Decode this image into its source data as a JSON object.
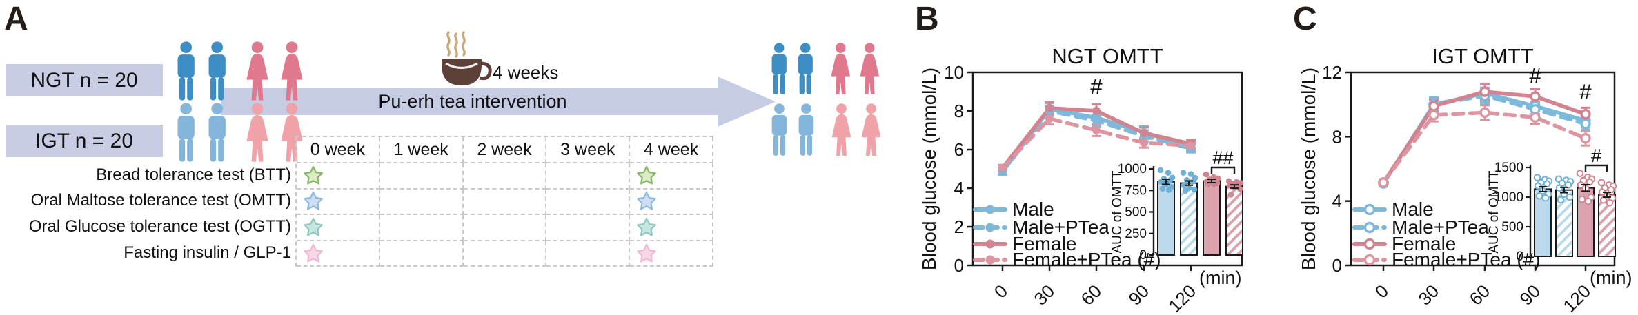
{
  "panels": {
    "a": {
      "label": "A",
      "groups": [
        {
          "label": "NGT n = 20",
          "male_color": "#3c8ec5",
          "female_color": "#e0798e"
        },
        {
          "label": "IGT n = 20",
          "male_color": "#84b6dc",
          "female_color": "#f0a2a9"
        }
      ],
      "group_box_color": "#c8cde4",
      "intervention": {
        "duration_label": "4 weeks",
        "arrow_label": "Pu-erh tea intervention",
        "arrow_color": "#c6cce4",
        "cup_color": "#5d4037",
        "steam_color": "#c9a87c"
      },
      "timeline": {
        "columns": [
          "0 week",
          "1 week",
          "2 week",
          "3 week",
          "4 week"
        ],
        "rows": [
          {
            "label": "Bread tolerance test (BTT)",
            "star_fill": "#dcebc6",
            "star_stroke": "#85b868",
            "marks": [
              0,
              4
            ]
          },
          {
            "label": "Oral Maltose tolerance test (OMTT)",
            "star_fill": "#ccdef2",
            "star_stroke": "#8fb8e0",
            "marks": [
              0,
              4
            ]
          },
          {
            "label": "Oral Glucose tolerance test (OGTT)",
            "star_fill": "#c8e6e0",
            "star_stroke": "#8cc8c0",
            "marks": [
              0,
              4
            ]
          },
          {
            "label": "Fasting insulin / GLP-1",
            "star_fill": "#f8d8e8",
            "star_stroke": "#f2b8d2",
            "marks": [
              0,
              4
            ]
          }
        ]
      }
    },
    "b": {
      "label": "B"
    },
    "c": {
      "label": "C"
    }
  },
  "chart_data": [
    {
      "id": "b-line",
      "type": "line",
      "title": "NGT  OMTT",
      "xlabel": "(min)",
      "ylabel": "Blood glucose (mmol/L)",
      "x": [
        0,
        30,
        60,
        90,
        120
      ],
      "ylim": [
        0,
        10
      ],
      "yticks": [
        0,
        2,
        4,
        6,
        8,
        10
      ],
      "legend_position": "bottom-left inside",
      "series": [
        {
          "name": "Male",
          "color": "#7db9da",
          "dash": false,
          "marker": "filled",
          "values": [
            4.85,
            8.1,
            7.65,
            6.9,
            6.1
          ],
          "errors": [
            0.15,
            0.3,
            0.35,
            0.3,
            0.2
          ]
        },
        {
          "name": "Male+PTea",
          "color": "#7db9da",
          "dash": true,
          "marker": "filled",
          "values": [
            4.85,
            8.0,
            7.5,
            6.7,
            6.05
          ],
          "errors": [
            0.15,
            0.25,
            0.3,
            0.3,
            0.2
          ]
        },
        {
          "name": "Female",
          "color": "#d2838f",
          "dash": false,
          "marker": "filled",
          "values": [
            5.05,
            8.15,
            8.0,
            6.85,
            6.3
          ],
          "errors": [
            0.15,
            0.3,
            0.35,
            0.3,
            0.2
          ]
        },
        {
          "name": "Female+PTea (#)",
          "color": "#dc95a1",
          "dash": true,
          "marker": "filled",
          "values": [
            5.05,
            7.6,
            7.0,
            6.35,
            6.2
          ],
          "errors": [
            0.15,
            0.3,
            0.3,
            0.25,
            0.2
          ]
        }
      ],
      "annotations": [
        {
          "text": "#",
          "x": 60,
          "value": 8.9
        }
      ]
    },
    {
      "id": "b-auc",
      "type": "bar",
      "ylabel": "AUC of OMTT",
      "ylim": [
        0,
        1000
      ],
      "yticks": [
        0,
        250,
        500,
        750,
        1000
      ],
      "dot_style": "filled",
      "bars": [
        {
          "group": "Male",
          "value": 850,
          "error": 30,
          "fill": "#badaec",
          "hatch": false,
          "dot_color": "#6fb0d6",
          "dots": [
            985,
            955,
            900,
            885,
            870,
            850,
            820,
            790,
            770,
            755
          ]
        },
        {
          "group": "Male+PTea",
          "value": 835,
          "error": 25,
          "fill": "#badaec",
          "hatch": true,
          "dot_color": "#6fb0d6",
          "dots": [
            955,
            940,
            895,
            870,
            855,
            805,
            775,
            760,
            745
          ]
        },
        {
          "group": "Female",
          "value": 860,
          "error": 20,
          "fill": "#dba2ad",
          "hatch": false,
          "dot_color": "#cf8490",
          "dots": [
            935,
            905,
            890,
            878,
            866,
            855,
            845,
            835,
            825,
            815
          ]
        },
        {
          "group": "Female+PTea",
          "value": 795,
          "error": 20,
          "fill": "#dba2ad",
          "hatch": true,
          "dot_color": "#cf8490",
          "dots": [
            858,
            848,
            838,
            828,
            818,
            805,
            788,
            768,
            700
          ]
        }
      ],
      "sig": {
        "text": "##",
        "from": 2,
        "to": 3
      }
    },
    {
      "id": "c-line",
      "type": "line",
      "title": "IGT  OMTT",
      "xlabel": "(min)",
      "ylabel": "Blood glucose (mmol/L)",
      "x": [
        0,
        30,
        60,
        90,
        120
      ],
      "ylim": [
        0,
        12
      ],
      "yticks": [
        0,
        4,
        8,
        12
      ],
      "legend_position": "bottom-left inside",
      "series": [
        {
          "name": "Male",
          "color": "#7db9da",
          "dash": false,
          "marker": "open",
          "values": [
            5.1,
            10.0,
            10.7,
            9.9,
            9.0
          ],
          "errors": [
            0.2,
            0.45,
            0.55,
            0.5,
            0.4
          ]
        },
        {
          "name": "Male+PTea",
          "color": "#7db9da",
          "dash": true,
          "marker": "open",
          "values": [
            5.1,
            10.0,
            10.55,
            9.7,
            8.8
          ],
          "errors": [
            0.2,
            0.4,
            0.5,
            0.45,
            0.35
          ]
        },
        {
          "name": "Female",
          "color": "#d2838f",
          "dash": false,
          "marker": "open",
          "values": [
            5.15,
            9.9,
            10.8,
            10.5,
            9.4
          ],
          "errors": [
            0.2,
            0.4,
            0.5,
            0.45,
            0.4
          ]
        },
        {
          "name": "Female+PTea (#)",
          "color": "#dc95a1",
          "dash": true,
          "marker": "open",
          "values": [
            5.15,
            9.35,
            9.5,
            9.2,
            7.9
          ],
          "errors": [
            0.2,
            0.4,
            0.45,
            0.4,
            0.45
          ]
        }
      ],
      "annotations": [
        {
          "text": "#",
          "x": 90,
          "value": 11.35
        },
        {
          "text": "#",
          "x": 120,
          "value": 10.35
        }
      ]
    },
    {
      "id": "c-auc",
      "type": "bar",
      "ylabel": "AUC of OMTT",
      "ylim": [
        0,
        1500
      ],
      "yticks": [
        0,
        500,
        1000,
        1500
      ],
      "dot_style": "open",
      "bars": [
        {
          "group": "Male",
          "value": 1135,
          "error": 40,
          "fill": "#badaec",
          "hatch": false,
          "dot_color": "#6fb0d6",
          "dots": [
            1330,
            1295,
            1270,
            1245,
            1225,
            1190,
            1105,
            1050,
            1020,
            985
          ]
        },
        {
          "group": "Male+PTea",
          "value": 1120,
          "error": 45,
          "fill": "#badaec",
          "hatch": true,
          "dot_color": "#6fb0d6",
          "dots": [
            1305,
            1285,
            1262,
            1235,
            1205,
            1155,
            1050,
            1000,
            955
          ]
        },
        {
          "group": "Female",
          "value": 1155,
          "error": 55,
          "fill": "#dba2ad",
          "hatch": false,
          "dot_color": "#cf8490",
          "dots": [
            1400,
            1335,
            1305,
            1280,
            1255,
            1205,
            1150,
            1000,
            965,
            930
          ]
        },
        {
          "group": "Female+PTea",
          "value": 1040,
          "error": 40,
          "fill": "#dba2ad",
          "hatch": true,
          "dot_color": "#cf8490",
          "dots": [
            1245,
            1205,
            1185,
            1155,
            1125,
            1085,
            1020,
            985,
            950,
            905
          ]
        }
      ],
      "sig": {
        "text": "#",
        "from": 2,
        "to": 3
      }
    }
  ]
}
